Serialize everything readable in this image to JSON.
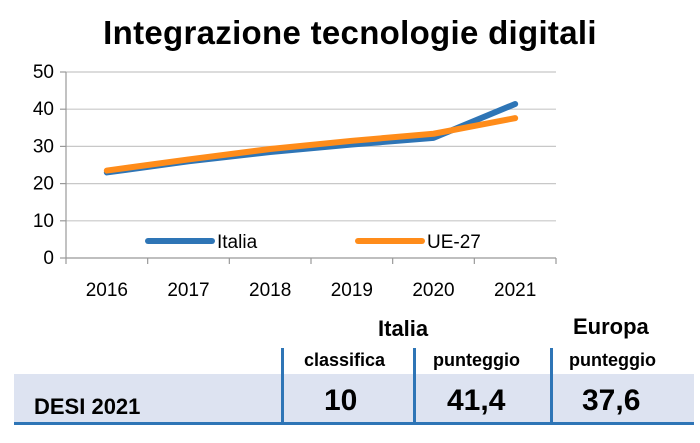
{
  "chart_data": {
    "type": "line",
    "title": "Integrazione tecnologie digitali",
    "x": [
      "2016",
      "2017",
      "2018",
      "2019",
      "2020",
      "2021"
    ],
    "ylim": [
      0,
      50
    ],
    "yticks": [
      "0",
      "10",
      "20",
      "30",
      "40",
      "50"
    ],
    "grid": true,
    "legend_position": "bottom-inside",
    "series": [
      {
        "name": "Italia",
        "color": "#2e75b6",
        "values": [
          23.0,
          26.0,
          28.5,
          30.5,
          32.3,
          41.4
        ]
      },
      {
        "name": "UE-27",
        "color": "#ff8c1a",
        "values": [
          23.5,
          26.5,
          29.3,
          31.5,
          33.4,
          37.6
        ]
      }
    ]
  },
  "table": {
    "italia_label": "Italia",
    "europa_label": "Europa",
    "col_classifica": "classifica",
    "col_punteggio_italia": "punteggio",
    "col_punteggio_europa": "punteggio",
    "row_label": "DESI 2021",
    "italia_classifica": "10",
    "italia_punteggio": "41,4",
    "europa_punteggio": "37,6"
  }
}
